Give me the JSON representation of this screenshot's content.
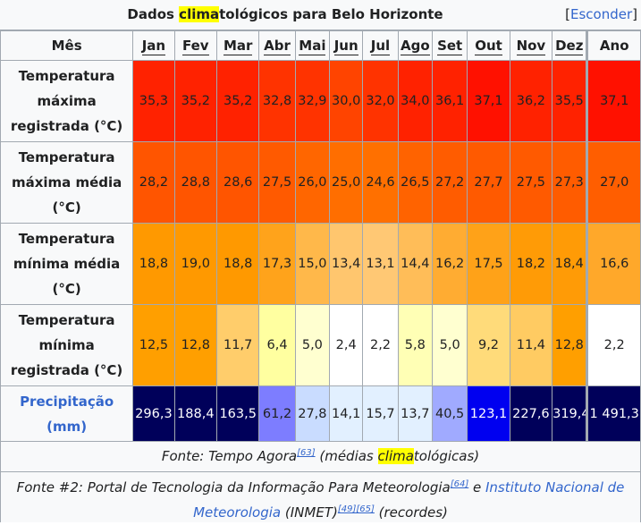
{
  "caption": {
    "title_before": "Dados ",
    "title_highlight": "clima",
    "title_after": "tológicos para Belo Horizonte",
    "hide_open": "[",
    "hide_link": "Esconder",
    "hide_close": "]"
  },
  "header": {
    "row_label": "Mês",
    "months": [
      "Jan",
      "Fev",
      "Mar",
      "Abr",
      "Mai",
      "Jun",
      "Jul",
      "Ago",
      "Set",
      "Out",
      "Nov",
      "Dez"
    ],
    "annual": "Ano"
  },
  "rows": [
    {
      "label": "Temperatura máxima registrada (°C)",
      "values": [
        "35,3",
        "35,2",
        "35,2",
        "32,8",
        "32,9",
        "30,0",
        "32,0",
        "34,0",
        "36,1",
        "37,1",
        "36,2",
        "35,5"
      ],
      "annual": "37,1",
      "colors": [
        "#ff2200",
        "#ff2200",
        "#ff2200",
        "#ff3300",
        "#ff3300",
        "#ff4400",
        "#ff3300",
        "#ff2200",
        "#ff2200",
        "#ff1100",
        "#ff2200",
        "#ff2200"
      ],
      "annual_color": "#ff1100"
    },
    {
      "label": "Temperatura máxima média (°C)",
      "values": [
        "28,2",
        "28,8",
        "28,6",
        "27,5",
        "26,0",
        "25,0",
        "24,6",
        "26,5",
        "27,2",
        "27,7",
        "27,5",
        "27,3"
      ],
      "annual": "27,0",
      "colors": [
        "#ff5500",
        "#ff5500",
        "#ff5500",
        "#ff5a00",
        "#ff6600",
        "#ff6e00",
        "#ff7000",
        "#ff6300",
        "#ff5c00",
        "#ff5a00",
        "#ff5a00",
        "#ff5c00"
      ],
      "annual_color": "#ff5e00"
    },
    {
      "label": "Temperatura mínima média (°C)",
      "values": [
        "18,8",
        "19,0",
        "18,8",
        "17,3",
        "15,0",
        "13,4",
        "13,1",
        "14,4",
        "16,2",
        "17,5",
        "18,2",
        "18,4"
      ],
      "annual": "16,6",
      "colors": [
        "#ff9900",
        "#ff9900",
        "#ff9900",
        "#ffa31b",
        "#ffb84a",
        "#ffc66e",
        "#ffc874",
        "#ffbd58",
        "#ffac32",
        "#ffa218",
        "#ff9b06",
        "#ff9b06"
      ],
      "annual_color": "#ffa82a"
    },
    {
      "label": "Temperatura mínima registrada (°C)",
      "values": [
        "12,5",
        "12,8",
        "11,7",
        "6,4",
        "5,0",
        "2,4",
        "2,2",
        "5,8",
        "5,0",
        "9,2",
        "11,4",
        "12,8"
      ],
      "annual": "2,2",
      "colors": [
        "#ff9f00",
        "#ff9f00",
        "#ffcd6b",
        "#ffffa0",
        "#ffffd0",
        "#ffffff",
        "#ffffff",
        "#ffffb5",
        "#ffffd0",
        "#ffdb7a",
        "#ffcb62",
        "#ff9f00"
      ],
      "annual_color": "#ffffff"
    },
    {
      "label": "Precipitação (mm)",
      "values": [
        "296,3",
        "188,4",
        "163,5",
        "61,2",
        "27,8",
        "14,1",
        "15,7",
        "13,7",
        "40,5",
        "123,1",
        "227,6",
        "319,4"
      ],
      "annual": "1 491,3",
      "colors": [
        "#00005a",
        "#00005a",
        "#00005a",
        "#7d7dff",
        "#c9dcff",
        "#e2f0ff",
        "#e2f0ff",
        "#e2f0ff",
        "#a0aaff",
        "#0000f0",
        "#00005a",
        "#00005a"
      ],
      "annual_color": "#00005a",
      "text_colors": [
        "#ffffff",
        "#ffffff",
        "#ffffff",
        "#202122",
        "#202122",
        "#202122",
        "#202122",
        "#202122",
        "#202122",
        "#ffffff",
        "#ffffff",
        "#ffffff"
      ],
      "annual_text_color": "#ffffff"
    }
  ],
  "footer1": {
    "before": "Fonte: Tempo Agora",
    "ref": "[63]",
    "middle": " (médias ",
    "highlight": "clima",
    "after": "tológicas)"
  },
  "footer2": {
    "part1": "Fonte #2: Portal de Tecnologia da Informação Para Meteorologia",
    "ref1": "[64]",
    "part2": " e ",
    "link": "Instituto Nacional de Meteorologia",
    "part3": " (INMET)",
    "ref2": "[49][65]",
    "part4": " (recordes)"
  }
}
